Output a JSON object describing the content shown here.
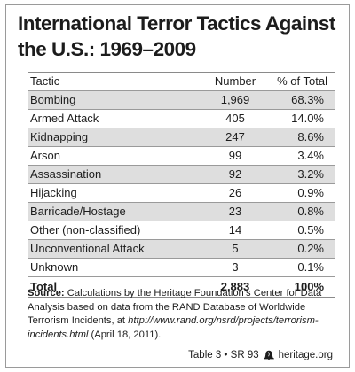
{
  "title": "International Terror Tactics Against the U.S.: 1969–2009",
  "chart_data": {
    "type": "table",
    "title": "International Terror Tactics Against the U.S.: 1969–2009",
    "columns": [
      "Tactic",
      "Number",
      "% of Total"
    ],
    "rows": [
      {
        "tactic": "Bombing",
        "number": "1,969",
        "pct": "68.3%"
      },
      {
        "tactic": "Armed Attack",
        "number": "405",
        "pct": "14.0%"
      },
      {
        "tactic": "Kidnapping",
        "number": "247",
        "pct": "8.6%"
      },
      {
        "tactic": "Arson",
        "number": "99",
        "pct": "3.4%"
      },
      {
        "tactic": "Assassination",
        "number": "92",
        "pct": "3.2%"
      },
      {
        "tactic": "Hijacking",
        "number": "26",
        "pct": "0.9%"
      },
      {
        "tactic": "Barricade/Hostage",
        "number": "23",
        "pct": "0.8%"
      },
      {
        "tactic": "Other (non-classified)",
        "number": "14",
        "pct": "0.5%"
      },
      {
        "tactic": "Unconventional Attack",
        "number": "5",
        "pct": "0.2%"
      },
      {
        "tactic": "Unknown",
        "number": "3",
        "pct": "0.1%"
      }
    ],
    "total": {
      "tactic": "Total",
      "number": "2,883",
      "pct": "100%"
    }
  },
  "source": {
    "label": "Source:",
    "text_a": " Calculations by the Heritage Foundation’s Center for Data Analysis based on data from the RAND Database of Worldwide Terrorism Incidents, at ",
    "url": "http://www.rand.org/nsrd/projects/terrorism-incidents.html",
    "text_b": " (April 18, 2011)."
  },
  "footer": {
    "ref": "Table 3 • SR 93",
    "site": "heritage.org"
  },
  "colors": {
    "stripe": "#dedede",
    "rule": "#9a9a9a"
  },
  "icons": {
    "footer_logo": "liberty-bell-icon"
  }
}
